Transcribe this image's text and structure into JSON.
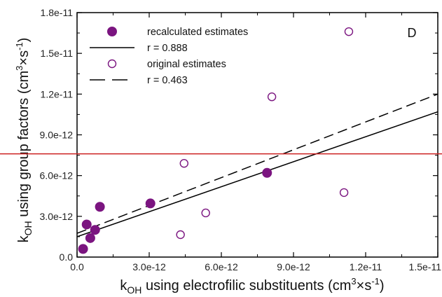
{
  "chart_data": {
    "type": "scatter",
    "panel_label": "D",
    "xlabel": {
      "prefix": "k",
      "sub": "OH",
      "middle": " using electrofilic substituents (cm",
      "sup1": "3",
      "times": "×s",
      "sup2": "-1",
      "end": ")"
    },
    "ylabel": {
      "prefix": "k",
      "sub": "OH",
      "middle": " using group factors (cm",
      "sup1": "3",
      "times": "×s",
      "sup2": "-1",
      "end": ")"
    },
    "xlim": [
      0,
      1.5e-11
    ],
    "ylim": [
      0,
      1.8e-11
    ],
    "x_ticks": [
      {
        "value": 0,
        "label": "0.0"
      },
      {
        "value": 3e-12,
        "label": "3.0e-12"
      },
      {
        "value": 6e-12,
        "label": "6.0e-12"
      },
      {
        "value": 9e-12,
        "label": "9.0e-12"
      },
      {
        "value": 1.2e-11,
        "label": "1.2e-11"
      },
      {
        "value": 1.5e-11,
        "label": "1.5e-11"
      }
    ],
    "y_ticks": [
      {
        "value": 0,
        "label": "0.0"
      },
      {
        "value": 3e-12,
        "label": "3.0e-12"
      },
      {
        "value": 6e-12,
        "label": "6.0e-12"
      },
      {
        "value": 9e-12,
        "label": "9.0e-12"
      },
      {
        "value": 1.2e-11,
        "label": "1.2e-11"
      },
      {
        "value": 1.5e-11,
        "label": "1.5e-11"
      },
      {
        "value": 1.8e-11,
        "label": "1.8e-11"
      }
    ],
    "grid": false,
    "legend_position": "top-left",
    "colors": {
      "marker": "#7b1580",
      "line": "#000000",
      "reference_line": "#cc2020"
    },
    "series": [
      {
        "name": "recalculated estimates",
        "marker": "filled-circle",
        "points": [
          {
            "x": 2.5e-13,
            "y": 6e-13
          },
          {
            "x": 4e-13,
            "y": 2.4e-12
          },
          {
            "x": 5.5e-13,
            "y": 1.4e-12
          },
          {
            "x": 7.5e-13,
            "y": 2e-12
          },
          {
            "x": 9.5e-13,
            "y": 3.7e-12
          },
          {
            "x": 3.05e-12,
            "y": 3.95e-12
          },
          {
            "x": 7.9e-12,
            "y": 6.2e-12
          }
        ]
      },
      {
        "name": "original estimates",
        "marker": "open-circle",
        "points": [
          {
            "x": 4.3e-12,
            "y": 1.65e-12
          },
          {
            "x": 4.45e-12,
            "y": 6.9e-12
          },
          {
            "x": 5.35e-12,
            "y": 3.25e-12
          },
          {
            "x": 8.1e-12,
            "y": 1.18e-11
          },
          {
            "x": 1.11e-11,
            "y": 4.75e-12
          },
          {
            "x": 1.13e-11,
            "y": 1.66e-11
          }
        ]
      }
    ],
    "fit_lines": [
      {
        "label": "r = 0.888",
        "style": "solid",
        "x": [
          0,
          1.5e-11
        ],
        "y": [
          1.5e-12,
          1.07e-11
        ]
      },
      {
        "label": "r = 0.463",
        "style": "dashed",
        "x": [
          0,
          1.5e-11
        ],
        "y": [
          1.75e-12,
          1.2e-11
        ]
      }
    ],
    "reference_line": {
      "orientation": "horizontal",
      "y": 7.6e-12
    }
  }
}
